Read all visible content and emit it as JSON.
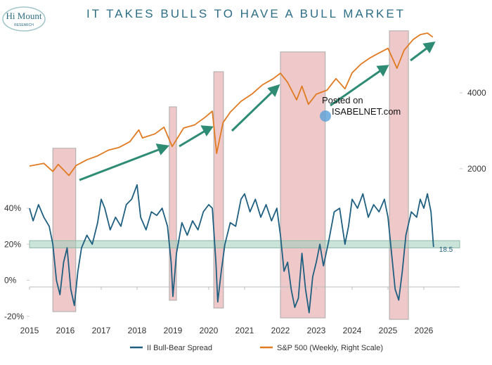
{
  "chart_data": {
    "type": "line",
    "title": "IT TAKES BULLS TO HAVE A BULL MARKET",
    "logo": {
      "name": "Hi Mount",
      "sub": "RESEARCH"
    },
    "watermark": [
      "Posted on",
      "ISABELNET.com"
    ],
    "xlim": [
      2015,
      2027
    ],
    "xticks": [
      2015,
      2016,
      2017,
      2018,
      2019,
      2020,
      2021,
      2022,
      2023,
      2024,
      2025,
      2026
    ],
    "ylim": [
      -24,
      140
    ],
    "yticks": [
      {
        "value": -20,
        "label": "-20%"
      },
      {
        "value": 0,
        "label": "0%"
      },
      {
        "value": 20,
        "label": "20%"
      },
      {
        "value": 40,
        "label": "40%"
      }
    ],
    "y2lim": [
      487,
      7215
    ],
    "y2ticks": [
      2000,
      4000
    ],
    "y2log": true,
    "reference_band": [
      18,
      22
    ],
    "shaded_regions": [
      {
        "x": [
          2015.65,
          2016.29
        ],
        "y": [
          -17.4,
          73.3
        ]
      },
      {
        "x": [
          2018.9,
          2019.1
        ],
        "y": [
          -11.1,
          96.3
        ]
      },
      {
        "x": [
          2020.14,
          2020.41
        ],
        "y": [
          -15.4,
          115.8
        ]
      },
      {
        "x": [
          2022.0,
          2023.25
        ],
        "y": [
          -20.9,
          126.8
        ]
      },
      {
        "x": [
          2025.04,
          2025.57
        ],
        "y": [
          -21.7,
          138.5
        ]
      }
    ],
    "series": [
      {
        "name": "II Bull-Bear Spread",
        "color": "#1f5f80",
        "x": [
          2015.0,
          2015.1,
          2015.25,
          2015.4,
          2015.55,
          2015.65,
          2015.75,
          2015.85,
          2015.95,
          2016.05,
          2016.15,
          2016.25,
          2016.35,
          2016.45,
          2016.6,
          2016.75,
          2016.9,
          2017.0,
          2017.1,
          2017.25,
          2017.4,
          2017.55,
          2017.7,
          2017.85,
          2018.0,
          2018.1,
          2018.25,
          2018.4,
          2018.55,
          2018.7,
          2018.85,
          2018.95,
          2019.0,
          2019.1,
          2019.25,
          2019.4,
          2019.55,
          2019.7,
          2019.85,
          2020.0,
          2020.1,
          2020.2,
          2020.25,
          2020.35,
          2020.45,
          2020.6,
          2020.75,
          2020.9,
          2021.0,
          2021.15,
          2021.3,
          2021.45,
          2021.6,
          2021.75,
          2021.9,
          2022.0,
          2022.1,
          2022.2,
          2022.3,
          2022.4,
          2022.5,
          2022.6,
          2022.7,
          2022.8,
          2022.9,
          2023.0,
          2023.1,
          2023.2,
          2023.35,
          2023.5,
          2023.65,
          2023.8,
          2023.9,
          2024.0,
          2024.15,
          2024.3,
          2024.45,
          2024.6,
          2024.75,
          2024.9,
          2025.0,
          2025.1,
          2025.2,
          2025.3,
          2025.4,
          2025.5,
          2025.65,
          2025.8,
          2025.9,
          2026.0,
          2026.1,
          2026.2,
          2026.27
        ],
        "values": [
          40,
          33,
          42,
          35,
          30,
          20,
          0,
          -8,
          10,
          18,
          -5,
          -14,
          5,
          18,
          25,
          20,
          32,
          45,
          40,
          28,
          35,
          30,
          42,
          45,
          53,
          35,
          28,
          38,
          36,
          40,
          30,
          10,
          -9,
          15,
          32,
          25,
          33,
          28,
          38,
          42,
          40,
          10,
          -12,
          5,
          20,
          32,
          30,
          45,
          48,
          38,
          45,
          35,
          42,
          33,
          40,
          25,
          5,
          10,
          -5,
          -15,
          -10,
          15,
          -5,
          -18,
          2,
          10,
          20,
          8,
          22,
          38,
          40,
          20,
          30,
          45,
          40,
          48,
          35,
          42,
          38,
          45,
          35,
          15,
          -5,
          -11,
          5,
          25,
          38,
          35,
          45,
          40,
          48,
          38,
          18.5
        ]
      },
      {
        "name": "S&P 500 (Weekly, Right Scale)",
        "color": "#e07b22",
        "axis": "y2",
        "x": [
          2015.0,
          2015.4,
          2015.65,
          2015.8,
          2016.1,
          2016.3,
          2016.6,
          2016.9,
          2017.2,
          2017.5,
          2017.8,
          2018.05,
          2018.15,
          2018.5,
          2018.75,
          2018.98,
          2019.3,
          2019.6,
          2019.9,
          2020.1,
          2020.22,
          2020.4,
          2020.6,
          2020.9,
          2021.2,
          2021.5,
          2021.8,
          2022.0,
          2022.2,
          2022.45,
          2022.6,
          2022.78,
          2023.0,
          2023.3,
          2023.55,
          2023.8,
          2024.0,
          2024.25,
          2024.5,
          2024.7,
          2025.0,
          2025.25,
          2025.45,
          2025.7,
          2025.9,
          2026.1,
          2026.25
        ],
        "values": [
          2050,
          2100,
          1950,
          2080,
          1880,
          2060,
          2170,
          2250,
          2370,
          2430,
          2560,
          2850,
          2650,
          2750,
          2920,
          2450,
          2900,
          2980,
          3200,
          3380,
          2300,
          3050,
          3350,
          3700,
          3950,
          4300,
          4550,
          4780,
          4400,
          3750,
          4250,
          3600,
          3950,
          4100,
          4550,
          4150,
          4800,
          5200,
          5500,
          5700,
          6000,
          5000,
          5900,
          6500,
          6800,
          6900,
          6650
        ]
      }
    ]
  }
}
